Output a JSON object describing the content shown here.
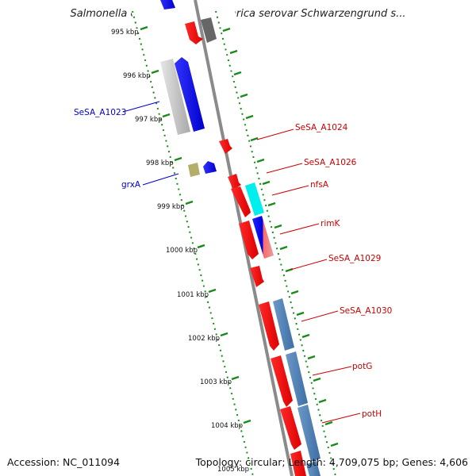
{
  "title": "Salmonella enterica subsp. enterica serovar Schwarzengrund s...",
  "footer": {
    "accession": "Accession: NC_011094",
    "topology": "Topology: circular; Length: 4,709,075 bp; Genes: 4,606"
  },
  "ticks": [
    "995 kbp",
    "996 kbp",
    "997 kbp",
    "998 kbp",
    "999 kbp",
    "1000 kbp",
    "1001 kbp",
    "1002 kbp",
    "1003 kbp",
    "1004 kbp",
    "1005 kbp"
  ],
  "labels": [
    {
      "text": "SeSA_A1023",
      "color": "#0000cc"
    },
    {
      "text": "grxA",
      "color": "#0000cc"
    },
    {
      "text": "SeSA_A1024",
      "color": "#cc0000"
    },
    {
      "text": "SeSA_A1026",
      "color": "#cc0000"
    },
    {
      "text": "nfsA",
      "color": "#cc0000"
    },
    {
      "text": "rimK",
      "color": "#cc0000"
    },
    {
      "text": "SeSA_A1029",
      "color": "#cc0000"
    },
    {
      "text": "SeSA_A1030",
      "color": "#cc0000"
    },
    {
      "text": "potG",
      "color": "#cc0000"
    },
    {
      "text": "potH",
      "color": "#cc0000"
    }
  ],
  "colors": {
    "backbone": "#8a8a8a",
    "ruler": "#1a8a1a",
    "forward_gene": "#ee0000",
    "reverse_gene": "#0000ee",
    "steelblue": "#4a7fb5",
    "cyan": "#00eeee",
    "gray_gene": "#bdbdbd",
    "dark_gray_gene": "#666666",
    "olive_gene": "#b5ad6a"
  }
}
